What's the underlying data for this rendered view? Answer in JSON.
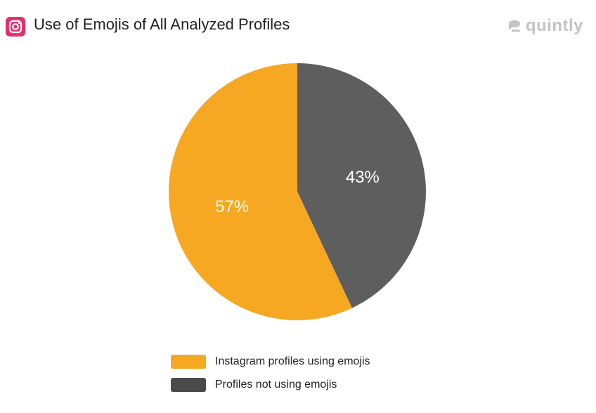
{
  "header": {
    "title": "Use of Emojis of All Analyzed Profiles",
    "platform_icon": "instagram-icon",
    "brand_icon": "quintly-logo-icon",
    "brand_name": "quintly"
  },
  "chart_data": {
    "type": "pie",
    "title": "Use of Emojis of All Analyzed Profiles",
    "categories": [
      "Instagram profiles using emojis",
      "Profiles not using emojis"
    ],
    "values": [
      57,
      43
    ],
    "labels": [
      "57%",
      "43%"
    ],
    "colors": [
      "#f7a823",
      "#5e5e5e"
    ],
    "legend_colors": [
      "#f7a823",
      "#4a4a4a"
    ],
    "legend_position": "bottom"
  }
}
